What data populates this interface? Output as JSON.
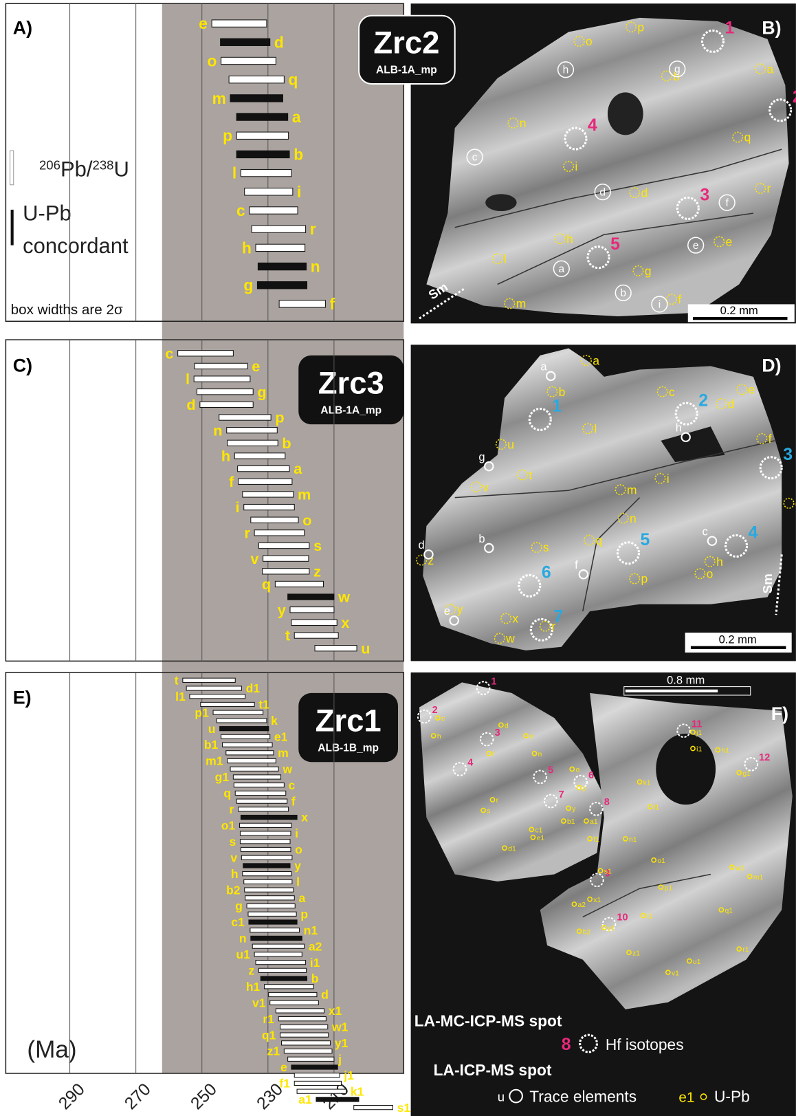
{
  "axis": {
    "xlim": [
      309.4,
      188.9
    ],
    "xticks": [
      290,
      270,
      250,
      230,
      210
    ],
    "unit": "(Ma)"
  },
  "legend_left": {
    "ratio": [
      "206",
      "Pb/",
      "238",
      "U"
    ],
    "concordant": [
      "U-Pb",
      "concordant"
    ],
    "note": "box widths are 2σ"
  },
  "legend_spots": {
    "hf_title": "LA-MC-ICP-MS spot",
    "hf_example": "8",
    "hf_label": "Hf isotopes",
    "la_title": "LA-ICP-MS spot",
    "trace_example": "u",
    "trace_label": "Trace elements",
    "upb_example": "e1",
    "upb_label": "U-Pb"
  },
  "panels": {
    "A": {
      "label": "A)",
      "sample": "Zrc2",
      "id": "ALB-1A_mp",
      "spots": [
        {
          "id": "e",
          "range": [
            247.0,
            230.4
          ],
          "concordant": false
        },
        {
          "id": "d",
          "range": [
            244.4,
            229.4
          ],
          "concordant": true
        },
        {
          "id": "o",
          "range": [
            244.2,
            227.6
          ],
          "concordant": false
        },
        {
          "id": "q",
          "range": [
            241.8,
            225.1
          ],
          "concordant": false
        },
        {
          "id": "m",
          "range": [
            241.4,
            225.5
          ],
          "concordant": true
        },
        {
          "id": "a",
          "range": [
            239.5,
            224.0
          ],
          "concordant": true
        },
        {
          "id": "p",
          "range": [
            239.5,
            223.8
          ],
          "concordant": false
        },
        {
          "id": "b",
          "range": [
            239.5,
            223.5
          ],
          "concordant": true
        },
        {
          "id": "l",
          "range": [
            238.2,
            222.9
          ],
          "concordant": false
        },
        {
          "id": "i",
          "range": [
            237.1,
            222.5
          ],
          "concordant": false
        },
        {
          "id": "c",
          "range": [
            235.6,
            221.0
          ],
          "concordant": false
        },
        {
          "id": "r",
          "range": [
            234.9,
            218.6
          ],
          "concordant": false
        },
        {
          "id": "h",
          "range": [
            233.7,
            218.8
          ],
          "concordant": false
        },
        {
          "id": "n",
          "range": [
            233.0,
            218.4
          ],
          "concordant": true
        },
        {
          "id": "g",
          "range": [
            233.2,
            218.2
          ],
          "concordant": true
        },
        {
          "id": "f",
          "range": [
            226.6,
            212.6
          ],
          "concordant": false
        }
      ]
    },
    "B": {
      "label": "B)",
      "scale": "0.2 mm",
      "sm": "Sm",
      "hf": [
        "1",
        "2",
        "3",
        "4",
        "5"
      ],
      "upb": [
        "p",
        "o",
        "a",
        "b",
        "n",
        "q",
        "i",
        "d",
        "r",
        "h",
        "l",
        "e",
        "g",
        "m",
        "f"
      ],
      "trace": [
        "h",
        "g",
        "c",
        "d",
        "f",
        "e",
        "a",
        "b",
        "i"
      ]
    },
    "C": {
      "label": "C)",
      "sample": "Zrc3",
      "id": "ALB-1A_mp",
      "spots": [
        {
          "id": "c",
          "range": [
            257.3,
            240.5
          ],
          "concordant": false
        },
        {
          "id": "e",
          "range": [
            252.2,
            236.2
          ],
          "concordant": false
        },
        {
          "id": "l",
          "range": [
            252.4,
            235.4
          ],
          "concordant": false
        },
        {
          "id": "g",
          "range": [
            251.5,
            234.5
          ],
          "concordant": false
        },
        {
          "id": "d",
          "range": [
            250.6,
            234.5
          ],
          "concordant": false
        },
        {
          "id": "p",
          "range": [
            244.8,
            229.1
          ],
          "concordant": false
        },
        {
          "id": "n",
          "range": [
            242.5,
            227.2
          ],
          "concordant": false
        },
        {
          "id": "b",
          "range": [
            242.3,
            227.0
          ],
          "concordant": false
        },
        {
          "id": "h",
          "range": [
            240.1,
            224.8
          ],
          "concordant": false
        },
        {
          "id": "a",
          "range": [
            239.2,
            223.5
          ],
          "concordant": false
        },
        {
          "id": "f",
          "range": [
            239.0,
            222.7
          ],
          "concordant": false
        },
        {
          "id": "m",
          "range": [
            237.7,
            222.3
          ],
          "concordant": false
        },
        {
          "id": "i",
          "range": [
            237.3,
            222.0
          ],
          "concordant": false
        },
        {
          "id": "o",
          "range": [
            235.2,
            220.8
          ],
          "concordant": false
        },
        {
          "id": "r",
          "range": [
            234.1,
            219.0
          ],
          "concordant": false
        },
        {
          "id": "s",
          "range": [
            232.8,
            217.5
          ],
          "concordant": false
        },
        {
          "id": "v",
          "range": [
            231.5,
            217.7
          ],
          "concordant": false
        },
        {
          "id": "z",
          "range": [
            231.7,
            217.5
          ],
          "concordant": false
        },
        {
          "id": "q",
          "range": [
            227.8,
            213.2
          ],
          "concordant": false
        },
        {
          "id": "w",
          "range": [
            224.0,
            210.0
          ],
          "concordant": true
        },
        {
          "id": "y",
          "range": [
            223.3,
            210.0
          ],
          "concordant": false
        },
        {
          "id": "x",
          "range": [
            222.9,
            209.1
          ],
          "concordant": false
        },
        {
          "id": "t",
          "range": [
            222.0,
            208.7
          ],
          "concordant": false
        },
        {
          "id": "u",
          "range": [
            215.8,
            203.1
          ],
          "concordant": false
        }
      ]
    },
    "D": {
      "label": "D)",
      "scale": "0.2 mm",
      "sm": "Sm",
      "hf": [
        "1",
        "2",
        "3",
        "4",
        "5",
        "6",
        "7"
      ],
      "upb": [
        "a",
        "b",
        "c",
        "e",
        "d",
        "l",
        "u",
        "t",
        "f",
        "i",
        "v",
        "m",
        "n",
        "g",
        "q",
        "s",
        "z",
        "h",
        "o",
        "p",
        "y",
        "x",
        "r",
        "w"
      ],
      "trace": [
        "a",
        "h",
        "g",
        "d",
        "b",
        "c",
        "f",
        "e"
      ]
    },
    "E": {
      "label": "E)",
      "sample": "Zrc1",
      "id": "ALB-1B_mp",
      "spots": [
        {
          "id": "t",
          "range": [
            255.8,
            239.9
          ],
          "concordant": false
        },
        {
          "id": "d1",
          "range": [
            254.7,
            238.0
          ],
          "concordant": false
        },
        {
          "id": "l1",
          "range": [
            253.7,
            236.9
          ],
          "concordant": false
        },
        {
          "id": "t1",
          "range": [
            250.4,
            234.1
          ],
          "concordant": false
        },
        {
          "id": "p1",
          "range": [
            246.6,
            231.5
          ],
          "concordant": false
        },
        {
          "id": "k",
          "range": [
            245.5,
            230.4
          ],
          "concordant": false
        },
        {
          "id": "u",
          "range": [
            244.6,
            229.8
          ],
          "concordant": true
        },
        {
          "id": "e1",
          "range": [
            244.2,
            229.4
          ],
          "concordant": false
        },
        {
          "id": "b1",
          "range": [
            243.8,
            228.7
          ],
          "concordant": false
        },
        {
          "id": "m",
          "range": [
            242.7,
            228.3
          ],
          "concordant": false
        },
        {
          "id": "m1",
          "range": [
            242.3,
            227.6
          ],
          "concordant": false
        },
        {
          "id": "w",
          "range": [
            241.4,
            226.8
          ],
          "concordant": false
        },
        {
          "id": "g1",
          "range": [
            240.5,
            226.1
          ],
          "concordant": false
        },
        {
          "id": "c",
          "range": [
            240.3,
            225.1
          ],
          "concordant": false
        },
        {
          "id": "q",
          "range": [
            239.9,
            224.6
          ],
          "concordant": false
        },
        {
          "id": "f",
          "range": [
            239.5,
            224.2
          ],
          "concordant": false
        },
        {
          "id": "r",
          "range": [
            239.0,
            223.8
          ],
          "concordant": false
        },
        {
          "id": "x",
          "range": [
            238.2,
            221.2
          ],
          "concordant": true
        },
        {
          "id": "o1",
          "range": [
            238.6,
            222.9
          ],
          "concordant": false
        },
        {
          "id": "i",
          "range": [
            238.4,
            223.1
          ],
          "concordant": false
        },
        {
          "id": "s",
          "range": [
            238.4,
            223.3
          ],
          "concordant": false
        },
        {
          "id": "o",
          "range": [
            238.2,
            223.1
          ],
          "concordant": false
        },
        {
          "id": "v",
          "range": [
            238.0,
            222.7
          ],
          "concordant": false
        },
        {
          "id": "y",
          "range": [
            237.5,
            223.3
          ],
          "concordant": true
        },
        {
          "id": "h",
          "range": [
            237.7,
            222.9
          ],
          "concordant": false
        },
        {
          "id": "l",
          "range": [
            237.3,
            222.7
          ],
          "concordant": false
        },
        {
          "id": "b2",
          "range": [
            237.1,
            222.3
          ],
          "concordant": false
        },
        {
          "id": "a",
          "range": [
            236.9,
            222.0
          ],
          "concordant": false
        },
        {
          "id": "g",
          "range": [
            236.4,
            221.8
          ],
          "concordant": false
        },
        {
          "id": "p",
          "range": [
            236.0,
            221.4
          ],
          "concordant": false
        },
        {
          "id": "c1",
          "range": [
            235.8,
            221.2
          ],
          "concordant": true
        },
        {
          "id": "n1",
          "range": [
            235.4,
            220.5
          ],
          "concordant": false
        },
        {
          "id": "n",
          "range": [
            235.2,
            219.7
          ],
          "concordant": true
        },
        {
          "id": "a2",
          "range": [
            234.7,
            219.0
          ],
          "concordant": false
        },
        {
          "id": "u1",
          "range": [
            234.1,
            219.7
          ],
          "concordant": false
        },
        {
          "id": "i1",
          "range": [
            233.7,
            218.6
          ],
          "concordant": false
        },
        {
          "id": "z",
          "range": [
            232.8,
            218.4
          ],
          "concordant": false
        },
        {
          "id": "b",
          "range": [
            232.2,
            218.2
          ],
          "concordant": true
        },
        {
          "id": "h1",
          "range": [
            231.1,
            216.2
          ],
          "concordant": false
        },
        {
          "id": "d",
          "range": [
            229.8,
            215.2
          ],
          "concordant": false
        },
        {
          "id": "v1",
          "range": [
            229.4,
            214.7
          ],
          "concordant": false
        },
        {
          "id": "x1",
          "range": [
            227.6,
            213.0
          ],
          "concordant": false
        },
        {
          "id": "r1",
          "range": [
            226.8,
            212.4
          ],
          "concordant": false
        },
        {
          "id": "w1",
          "range": [
            226.3,
            211.9
          ],
          "concordant": false
        },
        {
          "id": "q1",
          "range": [
            226.3,
            211.7
          ],
          "concordant": false
        },
        {
          "id": "y1",
          "range": [
            225.9,
            211.1
          ],
          "concordant": false
        },
        {
          "id": "z1",
          "range": [
            225.1,
            210.6
          ],
          "concordant": false
        },
        {
          "id": "j",
          "range": [
            224.0,
            210.0
          ],
          "concordant": false
        },
        {
          "id": "e",
          "range": [
            222.9,
            208.9
          ],
          "concordant": true
        },
        {
          "id": "j1",
          "range": [
            222.0,
            208.3
          ],
          "concordant": false
        },
        {
          "id": "f1",
          "range": [
            222.0,
            207.8
          ],
          "concordant": false
        },
        {
          "id": "k1",
          "range": [
            221.2,
            206.3
          ],
          "concordant": false
        },
        {
          "id": "a1",
          "range": [
            215.4,
            202.5
          ],
          "concordant": true
        },
        {
          "id": "s1",
          "range": [
            204.0,
            192.2
          ],
          "concordant": false
        }
      ]
    },
    "F": {
      "label": "F)",
      "scale": "0.8 mm",
      "hf": [
        "1",
        "2",
        "3",
        "4",
        "5",
        "6",
        "7",
        "8",
        "9",
        "10",
        "11",
        "12"
      ],
      "upb": [
        "c",
        "d",
        "e",
        "f",
        "h",
        "n",
        "o",
        "p",
        "r",
        "s",
        "y",
        "a1",
        "b1",
        "c1",
        "d1",
        "e1",
        "f1",
        "g1",
        "h1",
        "i1",
        "j1",
        "k1",
        "l1",
        "m1",
        "n1",
        "o1",
        "p1",
        "q1",
        "r1",
        "s1",
        "t1",
        "u1",
        "v1",
        "w1",
        "x1",
        "y1",
        "z1",
        "a2",
        "b2"
      ]
    }
  }
}
